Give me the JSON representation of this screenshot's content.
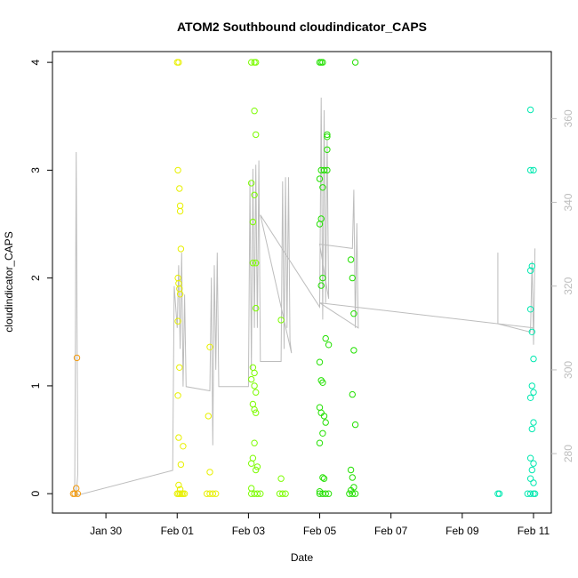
{
  "chart_data": {
    "type": "scatter",
    "title": "ATOM2 Southbound cloudindicator_CAPS",
    "xlabel": "Date",
    "ylabel": "cloudindicator_CAPS",
    "xlim": [
      "2022-01-28T12:00",
      "2022-02-11T12:00"
    ],
    "ylim": [
      -0.18,
      4.1
    ],
    "x_ticks": [
      {
        "value": "2022-01-30",
        "label": "Jan 30"
      },
      {
        "value": "2022-02-01",
        "label": "Feb 01"
      },
      {
        "value": "2022-02-03",
        "label": "Feb 03"
      },
      {
        "value": "2022-02-05",
        "label": "Feb 05"
      },
      {
        "value": "2022-02-07",
        "label": "Feb 07"
      },
      {
        "value": "2022-02-09",
        "label": "Feb 09"
      },
      {
        "value": "2022-02-11",
        "label": "Feb 11"
      }
    ],
    "y_ticks": [
      0,
      1,
      2,
      3,
      4
    ],
    "y2_ticks": [
      280,
      300,
      320,
      340,
      360
    ],
    "y2lim": [
      265.8,
      376
    ],
    "series": [
      {
        "color": "#f39c12",
        "points": [
          [
            "2022-01-29T02:00",
            0
          ],
          [
            "2022-01-29T03:00",
            0
          ],
          [
            "2022-01-29T04:00",
            0.05
          ],
          [
            "2022-01-29T04:30",
            1.26
          ],
          [
            "2022-01-29T05:00",
            0
          ]
        ]
      },
      {
        "color": "#e8f000",
        "points": [
          [
            "2022-02-01T00:00",
            4
          ],
          [
            "2022-02-01T01:00",
            4
          ],
          [
            "2022-02-01T00:30",
            3.0
          ],
          [
            "2022-02-01T01:30",
            2.83
          ],
          [
            "2022-02-01T02:00",
            2.67
          ],
          [
            "2022-02-01T02:00",
            2.62
          ],
          [
            "2022-02-01T02:30",
            2.27
          ],
          [
            "2022-02-01T00:30",
            2.0
          ],
          [
            "2022-02-01T01:00",
            1.95
          ],
          [
            "2022-02-01T01:30",
            1.9
          ],
          [
            "2022-02-01T02:00",
            1.85
          ],
          [
            "2022-02-01T00:30",
            1.6
          ],
          [
            "2022-02-01T01:30",
            1.17
          ],
          [
            "2022-02-01T00:30",
            0.91
          ],
          [
            "2022-02-01T01:00",
            0.52
          ],
          [
            "2022-02-01T04:00",
            0.44
          ],
          [
            "2022-02-01T02:30",
            0.27
          ],
          [
            "2022-02-01T01:00",
            0.08
          ],
          [
            "2022-02-01T02:00",
            0.04
          ],
          [
            "2022-02-01T00:00",
            0
          ],
          [
            "2022-02-01T01:00",
            0
          ],
          [
            "2022-02-01T02:00",
            0
          ],
          [
            "2022-02-01T03:00",
            0
          ],
          [
            "2022-02-01T04:00",
            0
          ],
          [
            "2022-02-01T05:00",
            0
          ],
          [
            "2022-02-01T21:00",
            0.72
          ],
          [
            "2022-02-01T22:00",
            1.36
          ],
          [
            "2022-02-01T22:00",
            0.2
          ],
          [
            "2022-02-01T20:00",
            0
          ],
          [
            "2022-02-01T22:00",
            0
          ],
          [
            "2022-02-02T00:00",
            0
          ],
          [
            "2022-02-02T02:00",
            0
          ]
        ]
      },
      {
        "color": "#7cfc00",
        "points": [
          [
            "2022-02-03T02:00",
            4
          ],
          [
            "2022-02-03T04:00",
            4
          ],
          [
            "2022-02-03T05:00",
            4
          ],
          [
            "2022-02-03T04:00",
            3.55
          ],
          [
            "2022-02-03T05:00",
            3.33
          ],
          [
            "2022-02-03T02:00",
            2.88
          ],
          [
            "2022-02-03T04:00",
            2.77
          ],
          [
            "2022-02-03T03:00",
            2.52
          ],
          [
            "2022-02-03T03:00",
            2.14
          ],
          [
            "2022-02-03T05:00",
            2.14
          ],
          [
            "2022-02-03T05:00",
            1.72
          ],
          [
            "2022-02-03T03:00",
            1.17
          ],
          [
            "2022-02-03T04:00",
            1.12
          ],
          [
            "2022-02-03T02:00",
            1.06
          ],
          [
            "2022-02-03T04:00",
            1.0
          ],
          [
            "2022-02-03T05:00",
            0.94
          ],
          [
            "2022-02-03T03:00",
            0.83
          ],
          [
            "2022-02-03T04:00",
            0.78
          ],
          [
            "2022-02-03T05:00",
            0.75
          ],
          [
            "2022-02-03T04:00",
            0.47
          ],
          [
            "2022-02-03T03:00",
            0.33
          ],
          [
            "2022-02-03T02:00",
            0.28
          ],
          [
            "2022-02-03T06:00",
            0.25
          ],
          [
            "2022-02-03T05:00",
            0.22
          ],
          [
            "2022-02-03T02:00",
            0.05
          ],
          [
            "2022-02-03T02:00",
            0
          ],
          [
            "2022-02-03T04:00",
            0
          ],
          [
            "2022-02-03T06:00",
            0
          ],
          [
            "2022-02-03T08:00",
            0
          ],
          [
            "2022-02-03T22:00",
            1.61
          ],
          [
            "2022-02-03T22:00",
            0.14
          ],
          [
            "2022-02-03T21:00",
            0
          ],
          [
            "2022-02-03T23:00",
            0
          ],
          [
            "2022-02-04T01:00",
            0
          ]
        ]
      },
      {
        "color": "#22e000",
        "points": [
          [
            "2022-02-05T00:00",
            4
          ],
          [
            "2022-02-05T01:00",
            4
          ],
          [
            "2022-02-05T02:00",
            4
          ],
          [
            "2022-02-05T01:00",
            3.0
          ],
          [
            "2022-02-05T03:00",
            3.0
          ],
          [
            "2022-02-05T05:00",
            3.0
          ],
          [
            "2022-02-05T00:00",
            2.92
          ],
          [
            "2022-02-05T02:00",
            2.84
          ],
          [
            "2022-02-05T05:00",
            3.33
          ],
          [
            "2022-02-05T05:00",
            3.31
          ],
          [
            "2022-02-05T05:00",
            3.19
          ],
          [
            "2022-02-05T01:00",
            2.55
          ],
          [
            "2022-02-05T00:00",
            2.5
          ],
          [
            "2022-02-05T02:00",
            2.0
          ],
          [
            "2022-02-05T01:00",
            1.93
          ],
          [
            "2022-02-05T04:00",
            1.44
          ],
          [
            "2022-02-05T06:00",
            1.38
          ],
          [
            "2022-02-05T00:00",
            1.22
          ],
          [
            "2022-02-05T01:00",
            1.05
          ],
          [
            "2022-02-05T02:00",
            1.03
          ],
          [
            "2022-02-05T00:00",
            0.8
          ],
          [
            "2022-02-05T01:00",
            0.75
          ],
          [
            "2022-02-05T03:00",
            0.72
          ],
          [
            "2022-02-05T04:00",
            0.66
          ],
          [
            "2022-02-05T02:00",
            0.56
          ],
          [
            "2022-02-05T00:00",
            0.47
          ],
          [
            "2022-02-05T02:00",
            0.15
          ],
          [
            "2022-02-05T03:00",
            0.14
          ],
          [
            "2022-02-05T00:00",
            0.02
          ],
          [
            "2022-02-05T00:00",
            0
          ],
          [
            "2022-02-05T02:00",
            0
          ],
          [
            "2022-02-05T04:00",
            0
          ],
          [
            "2022-02-05T06:00",
            0
          ],
          [
            "2022-02-05T21:00",
            2.17
          ],
          [
            "2022-02-05T22:00",
            2.0
          ],
          [
            "2022-02-05T23:00",
            1.67
          ],
          [
            "2022-02-06T00:00",
            4
          ],
          [
            "2022-02-05T23:00",
            1.33
          ],
          [
            "2022-02-05T22:00",
            0.92
          ],
          [
            "2022-02-06T00:00",
            0.64
          ],
          [
            "2022-02-05T21:00",
            0.22
          ],
          [
            "2022-02-05T22:00",
            0.15
          ],
          [
            "2022-02-05T23:00",
            0.06
          ],
          [
            "2022-02-05T21:00",
            0.03
          ],
          [
            "2022-02-05T20:00",
            0
          ],
          [
            "2022-02-05T22:00",
            0
          ],
          [
            "2022-02-06T00:00",
            0
          ]
        ]
      },
      {
        "color": "#00e8b0",
        "points": [
          [
            "2022-02-10T00:00",
            0
          ],
          [
            "2022-02-10T01:00",
            0
          ],
          [
            "2022-02-10T22:00",
            3.56
          ],
          [
            "2022-02-10T22:00",
            3.0
          ],
          [
            "2022-02-11T00:00",
            3.0
          ],
          [
            "2022-02-10T23:00",
            2.11
          ],
          [
            "2022-02-10T22:00",
            2.07
          ],
          [
            "2022-02-10T22:00",
            1.71
          ],
          [
            "2022-02-10T23:00",
            1.5
          ],
          [
            "2022-02-11T00:00",
            1.25
          ],
          [
            "2022-02-10T23:00",
            1.0
          ],
          [
            "2022-02-11T00:00",
            0.94
          ],
          [
            "2022-02-10T22:00",
            0.89
          ],
          [
            "2022-02-11T00:00",
            0.66
          ],
          [
            "2022-02-10T23:00",
            0.6
          ],
          [
            "2022-02-10T22:00",
            0.33
          ],
          [
            "2022-02-11T00:00",
            0.28
          ],
          [
            "2022-02-10T23:00",
            0.22
          ],
          [
            "2022-02-10T22:00",
            0.14
          ],
          [
            "2022-02-11T00:00",
            0.1
          ],
          [
            "2022-02-10T20:00",
            0
          ],
          [
            "2022-02-10T22:00",
            0
          ],
          [
            "2022-02-11T00:00",
            0
          ],
          [
            "2022-02-11T01:00",
            0
          ]
        ]
      }
    ],
    "secondary_line": {
      "color": "#bdbdbd",
      "points": [
        [
          "2022-01-29T03:00",
          270
        ],
        [
          "2022-01-29T04:00",
          352
        ],
        [
          "2022-01-29T05:00",
          275
        ],
        [
          "2022-01-29T04:00",
          270
        ],
        [
          "2022-01-31T21:00",
          276
        ],
        [
          "2022-01-31T22:00",
          320
        ],
        [
          "2022-02-01T00:00",
          310
        ],
        [
          "2022-02-01T01:00",
          325
        ],
        [
          "2022-02-01T02:00",
          305
        ],
        [
          "2022-02-01T03:00",
          328
        ],
        [
          "2022-02-01T04:00",
          296
        ],
        [
          "2022-02-01T05:00",
          318
        ],
        [
          "2022-02-01T06:00",
          296
        ],
        [
          "2022-02-01T22:00",
          295
        ],
        [
          "2022-02-01T23:00",
          322
        ],
        [
          "2022-02-02T00:00",
          282
        ],
        [
          "2022-02-02T01:00",
          325
        ],
        [
          "2022-02-02T02:00",
          300
        ],
        [
          "2022-02-02T03:00",
          328
        ],
        [
          "2022-02-02T04:00",
          296
        ],
        [
          "2022-02-03T00:00",
          296
        ],
        [
          "2022-02-03T01:00",
          345
        ],
        [
          "2022-02-03T02:00",
          300
        ],
        [
          "2022-02-03T03:00",
          348
        ],
        [
          "2022-02-03T04:00",
          310
        ],
        [
          "2022-02-03T05:00",
          349
        ],
        [
          "2022-02-03T06:00",
          310
        ],
        [
          "2022-02-03T07:00",
          350
        ],
        [
          "2022-02-03T08:00",
          302
        ],
        [
          "2022-02-03T22:00",
          302
        ],
        [
          "2022-02-03T23:00",
          345
        ],
        [
          "2022-02-04T00:00",
          305
        ],
        [
          "2022-02-04T01:00",
          346
        ],
        [
          "2022-02-04T02:00",
          310
        ],
        [
          "2022-02-04T03:00",
          346
        ],
        [
          "2022-02-04T04:00",
          307
        ],
        [
          "2022-02-04T05:00",
          304
        ],
        [
          "2022-02-03T08:00",
          337
        ],
        [
          "2022-02-05T00:00",
          315
        ],
        [
          "2022-02-05T01:00",
          365
        ],
        [
          "2022-02-05T02:00",
          312
        ],
        [
          "2022-02-05T03:00",
          362
        ],
        [
          "2022-02-05T04:00",
          316
        ],
        [
          "2022-02-05T05:00",
          355
        ],
        [
          "2022-02-05T06:00",
          317
        ],
        [
          "2022-02-05T00:00",
          330
        ],
        [
          "2022-02-05T22:00",
          329
        ],
        [
          "2022-02-05T23:00",
          343
        ],
        [
          "2022-02-06T00:00",
          310
        ],
        [
          "2022-02-06T01:00",
          335
        ],
        [
          "2022-02-06T02:00",
          310
        ],
        [
          "2022-02-05T00:00",
          316
        ],
        [
          "2022-02-11T00:00",
          310
        ],
        [
          "2022-02-10T00:00",
          311
        ],
        [
          "2022-02-10T00:00",
          328
        ],
        [
          "2022-02-10T00:00",
          311
        ],
        [
          "2022-02-10T22:00",
          309
        ],
        [
          "2022-02-10T23:00",
          326
        ],
        [
          "2022-02-11T00:00",
          306
        ],
        [
          "2022-02-11T01:00",
          329
        ],
        [
          "2022-02-11T00:00",
          307
        ]
      ]
    }
  }
}
